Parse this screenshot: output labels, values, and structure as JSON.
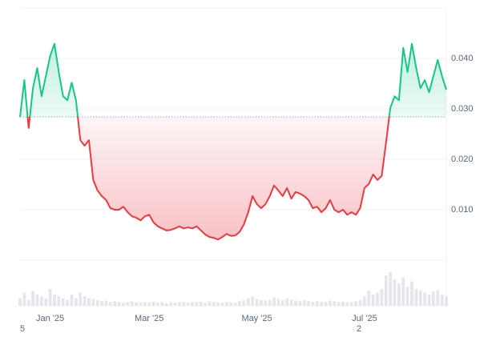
{
  "chart_data": {
    "type": "baseline-line",
    "categories": [
      null,
      null,
      null,
      null,
      null,
      null,
      null,
      "Jan '25",
      null,
      null,
      null,
      null,
      null,
      null,
      null,
      null,
      null,
      null,
      null,
      null,
      null,
      null,
      null,
      null,
      null,
      null,
      null,
      null,
      null,
      null,
      "Mar '25",
      null,
      null,
      null,
      null,
      null,
      null,
      null,
      null,
      null,
      null,
      null,
      null,
      null,
      null,
      null,
      null,
      null,
      null,
      null,
      null,
      null,
      null,
      null,
      null,
      "May '25",
      null,
      null,
      null,
      null,
      null,
      null,
      null,
      null,
      null,
      null,
      null,
      null,
      null,
      null,
      null,
      null,
      null,
      null,
      null,
      null,
      null,
      null,
      null,
      null,
      "Jul '25",
      null,
      null,
      null,
      null,
      null,
      null,
      null,
      null,
      null,
      null,
      null,
      null,
      null,
      null,
      null,
      null,
      null,
      null,
      null
    ],
    "values": [
      0.0284,
      0.0357,
      0.0262,
      0.0341,
      0.0381,
      0.0325,
      0.0365,
      0.0405,
      0.0429,
      0.0373,
      0.0325,
      0.0317,
      0.0352,
      0.0317,
      0.0238,
      0.0227,
      0.0238,
      0.0159,
      0.0138,
      0.0127,
      0.0119,
      0.0103,
      0.01,
      0.01,
      0.0106,
      0.0095,
      0.0087,
      0.0084,
      0.0079,
      0.0087,
      0.009,
      0.0075,
      0.0067,
      0.0063,
      0.0059,
      0.006,
      0.0063,
      0.0067,
      0.0063,
      0.0065,
      0.0063,
      0.0067,
      0.0059,
      0.0051,
      0.0046,
      0.0044,
      0.0041,
      0.0046,
      0.0052,
      0.0048,
      0.0049,
      0.0056,
      0.0071,
      0.0095,
      0.0127,
      0.0111,
      0.0103,
      0.0111,
      0.0127,
      0.0148,
      0.0138,
      0.0127,
      0.0143,
      0.0122,
      0.0135,
      0.0132,
      0.0127,
      0.0119,
      0.0103,
      0.0106,
      0.0095,
      0.0103,
      0.0119,
      0.01,
      0.0095,
      0.01,
      0.009,
      0.0095,
      0.009,
      0.0103,
      0.0143,
      0.0151,
      0.017,
      0.0159,
      0.0167,
      0.0233,
      0.0302,
      0.0325,
      0.0317,
      0.0421,
      0.0373,
      0.0429,
      0.0381,
      0.0341,
      0.0357,
      0.0333,
      0.0365,
      0.0397,
      0.0365,
      0.0338
    ],
    "volume": [
      20,
      35,
      15,
      40,
      30,
      25,
      20,
      45,
      30,
      25,
      20,
      15,
      30,
      20,
      35,
      25,
      20,
      18,
      15,
      12,
      14,
      10,
      12,
      10,
      8,
      10,
      12,
      9,
      8,
      10,
      9,
      11,
      8,
      10,
      7,
      9,
      8,
      10,
      9,
      8,
      10,
      9,
      11,
      8,
      12,
      10,
      9,
      8,
      10,
      9,
      8,
      12,
      15,
      20,
      25,
      18,
      15,
      14,
      16,
      22,
      18,
      15,
      20,
      16,
      14,
      12,
      15,
      13,
      10,
      12,
      11,
      10,
      14,
      12,
      10,
      11,
      9,
      10,
      12,
      15,
      25,
      40,
      30,
      35,
      45,
      80,
      90,
      70,
      60,
      75,
      50,
      65,
      45,
      40,
      35,
      30,
      38,
      42,
      30,
      25
    ],
    "volume_lim": [
      0,
      100
    ],
    "up_color": "#16c784",
    "down_color": "#ea3943",
    "baseline": 0.0284,
    "ylim": [
      0,
      0.05
    ],
    "yticks": [
      {
        "value": 0.01,
        "label": "0.010"
      },
      {
        "value": 0.02,
        "label": "0.020"
      },
      {
        "value": 0.03,
        "label": "0.030"
      },
      {
        "value": 0.04,
        "label": "0.040"
      }
    ],
    "grid": true,
    "annotations": [
      "5",
      "2"
    ]
  }
}
